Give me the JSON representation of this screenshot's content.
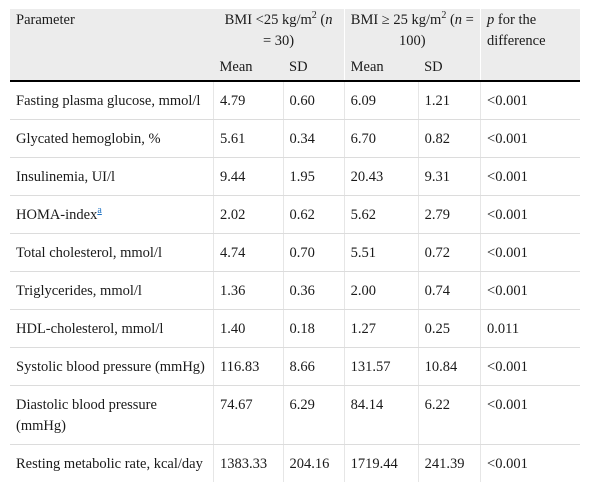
{
  "table": {
    "header": {
      "parameter": "Parameter",
      "group1_a": "BMI <25 kg/m",
      "group1_sup": "2",
      "group1_b": " (",
      "group1_n": "n",
      "group1_c": "= 30)",
      "group2_a": "BMI ≥ 25 kg/m",
      "group2_sup": "2",
      "group2_b": " (",
      "group2_n": "n",
      "group2_c": " =",
      "group2_d": "100)",
      "p_italic": "p",
      "p_rest": " for the difference",
      "mean1": "Mean",
      "sd1": "SD",
      "mean2": "Mean",
      "sd2": "SD"
    },
    "rows": [
      {
        "param": "Fasting plasma glucose, mmol/l",
        "m1": "4.79",
        "sd1": "0.60",
        "m2": "6.09",
        "sd2": "1.21",
        "p": "<0.001"
      },
      {
        "param": "Glycated hemoglobin, %",
        "m1": "5.61",
        "sd1": "0.34",
        "m2": "6.70",
        "sd2": "0.82",
        "p": "<0.001"
      },
      {
        "param": "Insulinemia, UI/l",
        "m1": "9.44",
        "sd1": "1.95",
        "m2": "20.43",
        "sd2": "9.31",
        "p": "<0.001"
      },
      {
        "param": "HOMA-index",
        "footnote": "a",
        "m1": "2.02",
        "sd1": "0.62",
        "m2": "5.62",
        "sd2": "2.79",
        "p": "<0.001"
      },
      {
        "param": "Total cholesterol, mmol/l",
        "m1": "4.74",
        "sd1": "0.70",
        "m2": "5.51",
        "sd2": "0.72",
        "p": "<0.001"
      },
      {
        "param": "Triglycerides, mmol/l",
        "m1": "1.36",
        "sd1": "0.36",
        "m2": "2.00",
        "sd2": "0.74",
        "p": "<0.001"
      },
      {
        "param": "HDL-cholesterol, mmol/l",
        "m1": "1.40",
        "sd1": "0.18",
        "m2": "1.27",
        "sd2": "0.25",
        "p": "0.011"
      },
      {
        "param": "Systolic blood pressure (mmHg)",
        "m1": "116.83",
        "sd1": "8.66",
        "m2": "131.57",
        "sd2": "10.84",
        "p": "<0.001"
      },
      {
        "param": "Diastolic blood pressure (mmHg)",
        "m1": "74.67",
        "sd1": "6.29",
        "m2": "84.14",
        "sd2": "6.22",
        "p": "<0.001"
      },
      {
        "param": "Resting metabolic rate, kcal/day",
        "m1": "1383.33",
        "sd1": "204.16",
        "m2": "1719.44",
        "sd2": "241.39",
        "p": "<0.001"
      }
    ]
  }
}
